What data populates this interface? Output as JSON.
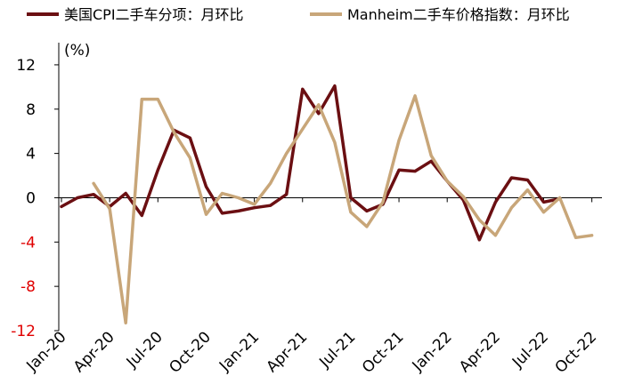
{
  "chart_data": {
    "type": "line",
    "unit_label": "(%)",
    "ylim": [
      -12,
      14
    ],
    "yticks": [
      12,
      8,
      4,
      0,
      -4,
      -8,
      -12
    ],
    "negative_tick_color": "#e00000",
    "grid": false,
    "legend_position": "top",
    "x": [
      "2020-01",
      "2020-02",
      "2020-03",
      "2020-04",
      "2020-05",
      "2020-06",
      "2020-07",
      "2020-08",
      "2020-09",
      "2020-10",
      "2020-11",
      "2020-12",
      "2021-01",
      "2021-02",
      "2021-03",
      "2021-04",
      "2021-05",
      "2021-06",
      "2021-07",
      "2021-08",
      "2021-09",
      "2021-10",
      "2021-11",
      "2021-12",
      "2022-01",
      "2022-02",
      "2022-03",
      "2022-04",
      "2022-05",
      "2022-06",
      "2022-07",
      "2022-08",
      "2022-09",
      "2022-10",
      "2022-11"
    ],
    "xtick_labels": [
      {
        "index": 0,
        "label": "Jan-20"
      },
      {
        "index": 3,
        "label": "Apr-20"
      },
      {
        "index": 6,
        "label": "Jul-20"
      },
      {
        "index": 9,
        "label": "Oct-20"
      },
      {
        "index": 12,
        "label": "Jan-21"
      },
      {
        "index": 15,
        "label": "Apr-21"
      },
      {
        "index": 18,
        "label": "Jul-21"
      },
      {
        "index": 21,
        "label": "Oct-21"
      },
      {
        "index": 24,
        "label": "Jan-22"
      },
      {
        "index": 27,
        "label": "Apr-22"
      },
      {
        "index": 30,
        "label": "Jul-22"
      },
      {
        "index": 33,
        "label": "Oct-22"
      }
    ],
    "series": [
      {
        "name": "美国CPI二手车分项：月环比",
        "color": "#6b0f12",
        "values": [
          -0.8,
          0.0,
          0.3,
          -0.8,
          0.4,
          -1.6,
          2.5,
          6.1,
          5.4,
          1.0,
          -1.4,
          -1.2,
          -0.9,
          -0.7,
          0.3,
          9.8,
          7.6,
          10.1,
          0.0,
          -1.2,
          -0.6,
          2.5,
          2.4,
          3.3,
          1.5,
          -0.2,
          -3.8,
          -0.4,
          1.8,
          1.6,
          -0.4,
          -0.1,
          null,
          null,
          null
        ]
      },
      {
        "name": "Manheim二手车价格指数：月环比",
        "color": "#c8a679",
        "values": [
          null,
          null,
          1.3,
          -1.0,
          -11.3,
          8.9,
          8.9,
          5.9,
          3.6,
          -1.5,
          0.4,
          0.0,
          -0.6,
          1.3,
          4.0,
          6.2,
          8.4,
          5.0,
          -1.3,
          -2.6,
          -0.4,
          5.2,
          9.2,
          3.8,
          1.5,
          0.1,
          -2.0,
          -3.4,
          -0.9,
          0.7,
          -1.3,
          0.0,
          -3.6,
          -3.4,
          null
        ]
      }
    ]
  }
}
